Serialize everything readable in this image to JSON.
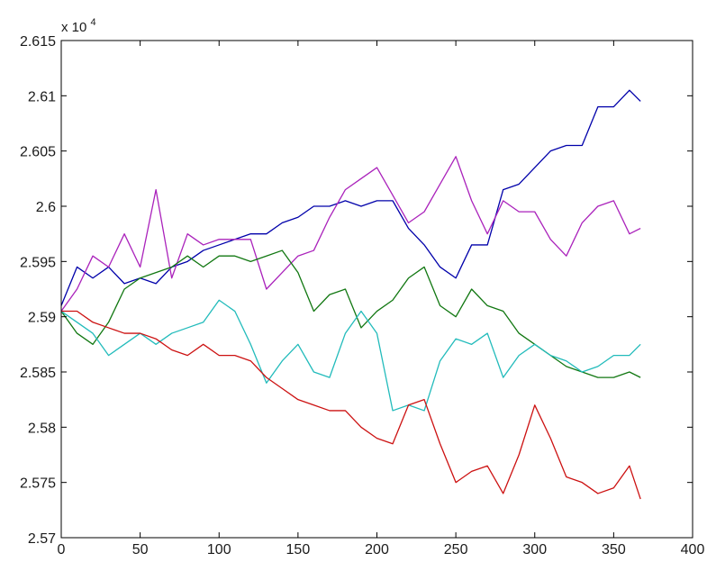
{
  "chart_data": {
    "type": "line",
    "title": "",
    "xlabel": "",
    "ylabel": "",
    "xlim": [
      0,
      400
    ],
    "ylim": [
      2.57,
      2.615
    ],
    "y_exponent_label": {
      "base": "x 10",
      "exponent": "4"
    },
    "x_ticks": [
      "0",
      "50",
      "100",
      "150",
      "200",
      "250",
      "300",
      "350",
      "400"
    ],
    "y_ticks": [
      "2.57",
      "2.575",
      "2.58",
      "2.585",
      "2.59",
      "2.595",
      "2.6",
      "2.605",
      "2.61",
      "2.615"
    ],
    "grid": false,
    "legend": "none",
    "series": [
      {
        "color": "#0000aa",
        "x": [
          0,
          10,
          20,
          30,
          40,
          50,
          60,
          70,
          80,
          90,
          100,
          110,
          120,
          130,
          140,
          150,
          160,
          170,
          180,
          190,
          200,
          210,
          220,
          230,
          240,
          250,
          260,
          270,
          280,
          290,
          300,
          310,
          320,
          330,
          340,
          350,
          360,
          367
        ],
        "y": [
          2.591,
          2.5945,
          2.5935,
          2.5945,
          2.593,
          2.5935,
          2.593,
          2.5945,
          2.595,
          2.596,
          2.5965,
          2.597,
          2.5975,
          2.5975,
          2.5985,
          2.599,
          2.6,
          2.6,
          2.6005,
          2.6,
          2.6005,
          2.6005,
          2.598,
          2.5965,
          2.5945,
          2.5935,
          2.5965,
          2.5965,
          2.6015,
          2.602,
          2.6035,
          2.605,
          2.6055,
          2.6055,
          2.609,
          2.609,
          2.6105,
          2.6095
        ]
      },
      {
        "color": "#aa22bb",
        "x": [
          0,
          10,
          20,
          30,
          40,
          50,
          60,
          70,
          80,
          90,
          100,
          110,
          120,
          130,
          140,
          150,
          160,
          170,
          180,
          190,
          200,
          210,
          220,
          230,
          240,
          250,
          260,
          270,
          280,
          290,
          300,
          310,
          320,
          330,
          340,
          350,
          360,
          367
        ],
        "y": [
          2.5905,
          2.5925,
          2.5955,
          2.5945,
          2.5975,
          2.5945,
          2.6015,
          2.5935,
          2.5975,
          2.5965,
          2.597,
          2.597,
          2.597,
          2.5925,
          2.594,
          2.5955,
          2.596,
          2.599,
          2.6015,
          2.6025,
          2.6035,
          2.601,
          2.5985,
          2.5995,
          2.602,
          2.6045,
          2.6005,
          2.5975,
          2.6005,
          2.5995,
          2.5995,
          2.597,
          2.5955,
          2.5985,
          2.6,
          2.6005,
          2.5975,
          2.598
        ]
      },
      {
        "color": "#117711",
        "x": [
          0,
          10,
          20,
          30,
          40,
          50,
          60,
          70,
          80,
          90,
          100,
          110,
          120,
          130,
          140,
          150,
          160,
          170,
          180,
          190,
          200,
          210,
          220,
          230,
          240,
          250,
          260,
          270,
          280,
          290,
          300,
          310,
          320,
          330,
          340,
          350,
          360,
          367
        ],
        "y": [
          2.5905,
          2.5885,
          2.5875,
          2.5895,
          2.5925,
          2.5935,
          2.594,
          2.5945,
          2.5955,
          2.5945,
          2.5955,
          2.5955,
          2.595,
          2.5955,
          2.596,
          2.594,
          2.5905,
          2.592,
          2.5925,
          2.589,
          2.5905,
          2.5915,
          2.5935,
          2.5945,
          2.591,
          2.59,
          2.5925,
          2.591,
          2.5905,
          2.5885,
          2.5875,
          2.5865,
          2.5855,
          2.585,
          2.5845,
          2.5845,
          2.585,
          2.5845
        ]
      },
      {
        "color": "#22bbbb",
        "x": [
          0,
          10,
          20,
          30,
          40,
          50,
          60,
          70,
          80,
          90,
          100,
          110,
          120,
          130,
          140,
          150,
          160,
          170,
          180,
          190,
          200,
          210,
          220,
          230,
          240,
          250,
          260,
          270,
          280,
          290,
          300,
          310,
          320,
          330,
          340,
          350,
          360,
          367
        ],
        "y": [
          2.5905,
          2.5895,
          2.5885,
          2.5865,
          2.5875,
          2.5885,
          2.5875,
          2.5885,
          2.589,
          2.5895,
          2.5915,
          2.5905,
          2.5875,
          2.584,
          2.586,
          2.5875,
          2.585,
          2.5845,
          2.5885,
          2.5905,
          2.5885,
          2.5815,
          2.582,
          2.5815,
          2.586,
          2.588,
          2.5875,
          2.5885,
          2.5845,
          2.5865,
          2.5875,
          2.5865,
          2.586,
          2.585,
          2.5855,
          2.5865,
          2.5865,
          2.5875
        ]
      },
      {
        "color": "#cc1111",
        "x": [
          0,
          10,
          20,
          30,
          40,
          50,
          60,
          70,
          80,
          90,
          100,
          110,
          120,
          130,
          140,
          150,
          160,
          170,
          180,
          190,
          200,
          210,
          220,
          230,
          240,
          250,
          260,
          270,
          280,
          290,
          300,
          310,
          320,
          330,
          340,
          350,
          360,
          367
        ],
        "y": [
          2.5905,
          2.5905,
          2.5895,
          2.589,
          2.5885,
          2.5885,
          2.588,
          2.587,
          2.5865,
          2.5875,
          2.5865,
          2.5865,
          2.586,
          2.5845,
          2.5835,
          2.5825,
          2.582,
          2.5815,
          2.5815,
          2.58,
          2.579,
          2.5785,
          2.582,
          2.5825,
          2.5785,
          2.575,
          2.576,
          2.5765,
          2.574,
          2.5775,
          2.582,
          2.579,
          2.5755,
          2.575,
          2.574,
          2.5745,
          2.5765,
          2.5735
        ]
      }
    ]
  }
}
